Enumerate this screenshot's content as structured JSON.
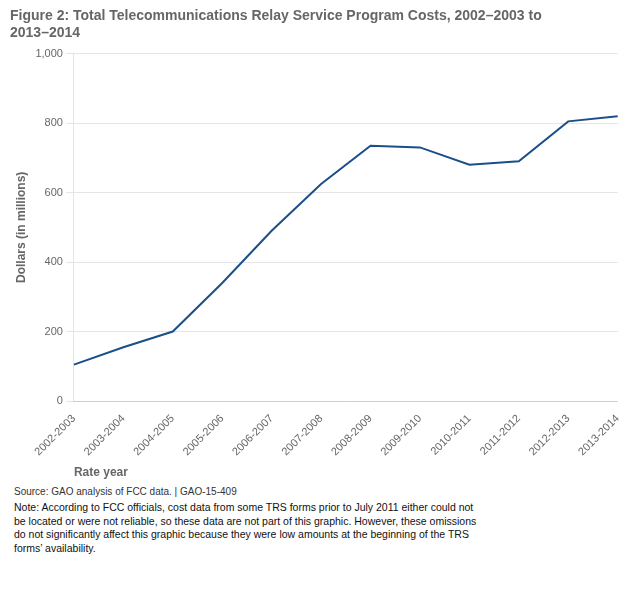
{
  "chart_data": {
    "type": "line",
    "title": [
      "Figure 2: Total Telecommunications Relay Service Program Costs, 2002–2003 to",
      "2013–2014"
    ],
    "y_label": "Dollars (in millions)",
    "x_label": "Rate year",
    "categories": [
      "2002-2003",
      "2003-2004",
      "2004-2005",
      "2005-2006",
      "2006-2007",
      "2007-2008",
      "2008-2009",
      "2009-2010",
      "2010-2011",
      "2011-2012",
      "2012-2013",
      "2013-2014"
    ],
    "values": [
      105,
      155,
      200,
      340,
      490,
      625,
      735,
      730,
      680,
      690,
      805,
      820
    ],
    "color": "#1a4f8a",
    "marker": "none",
    "ylim": [
      0,
      1000
    ],
    "yticks": [
      0,
      200,
      400,
      600,
      800,
      {
        "value": 1000,
        "label": "1,000"
      }
    ],
    "grid": true,
    "source": "Source: GAO analysis of FCC data.  |  GAO-15-409",
    "note": "Note: According to FCC officials, cost data from some TRS forms prior to July 2011 either could not\nbe located or were not reliable, so these data are not part of this graphic. However, these omissions\ndo not significantly affect this graphic because they were low amounts at the beginning of the TRS\nforms’ availability."
  }
}
